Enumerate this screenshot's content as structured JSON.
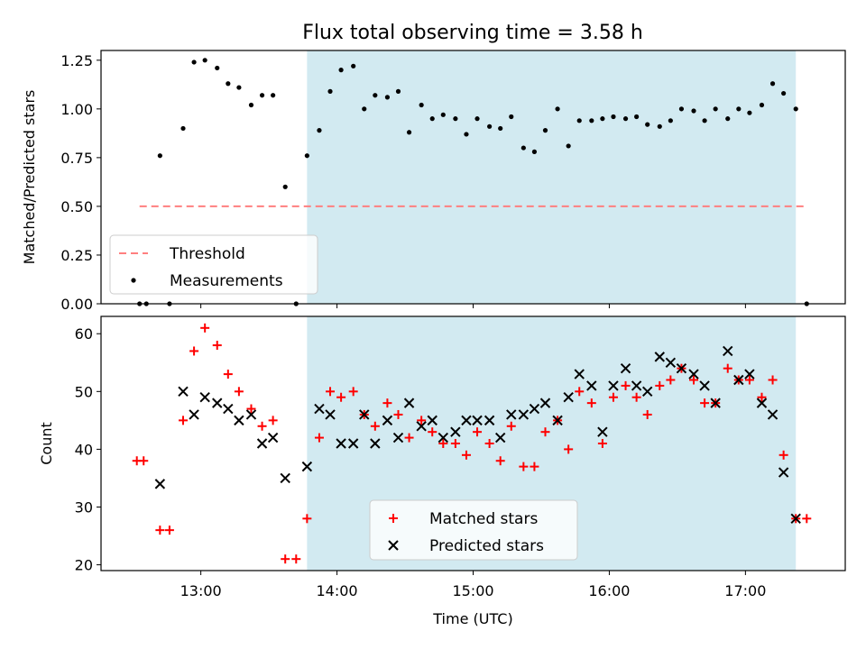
{
  "title": "Flux total observing time = 3.58 h",
  "chart_data": [
    {
      "type": "scatter",
      "ylabel": "Matched/Predicted stars",
      "xlim_hours": [
        12.267,
        17.733
      ],
      "ylim": [
        0.0,
        1.3
      ],
      "yticks": [
        0.0,
        0.25,
        0.5,
        0.75,
        1.0,
        1.25
      ],
      "ytick_labels": [
        "0.00",
        "0.25",
        "0.50",
        "0.75",
        "1.00",
        "1.25"
      ],
      "shaded_span_hours": [
        13.78,
        17.37
      ],
      "shade_color": "#add8e6",
      "threshold": {
        "name": "Threshold",
        "y": 0.5,
        "x_hours": [
          12.55,
          17.45
        ],
        "color": "#ff7f7f"
      },
      "series": [
        {
          "name": "Measurements",
          "color": "#000000",
          "marker": "dot",
          "points": [
            [
              12.55,
              0.0
            ],
            [
              12.6,
              0.0
            ],
            [
              12.7,
              0.76
            ],
            [
              12.77,
              0.0
            ],
            [
              12.87,
              0.9
            ],
            [
              12.95,
              1.24
            ],
            [
              13.03,
              1.25
            ],
            [
              13.12,
              1.21
            ],
            [
              13.2,
              1.13
            ],
            [
              13.28,
              1.11
            ],
            [
              13.37,
              1.02
            ],
            [
              13.45,
              1.07
            ],
            [
              13.53,
              1.07
            ],
            [
              13.62,
              0.6
            ],
            [
              13.7,
              0.0
            ],
            [
              13.78,
              0.76
            ],
            [
              13.87,
              0.89
            ],
            [
              13.95,
              1.09
            ],
            [
              14.03,
              1.2
            ],
            [
              14.12,
              1.22
            ],
            [
              14.2,
              1.0
            ],
            [
              14.28,
              1.07
            ],
            [
              14.37,
              1.06
            ],
            [
              14.45,
              1.09
            ],
            [
              14.53,
              0.88
            ],
            [
              14.62,
              1.02
            ],
            [
              14.7,
              0.95
            ],
            [
              14.78,
              0.97
            ],
            [
              14.87,
              0.95
            ],
            [
              14.95,
              0.87
            ],
            [
              15.03,
              0.95
            ],
            [
              15.12,
              0.91
            ],
            [
              15.2,
              0.9
            ],
            [
              15.28,
              0.96
            ],
            [
              15.37,
              0.8
            ],
            [
              15.45,
              0.78
            ],
            [
              15.53,
              0.89
            ],
            [
              15.62,
              1.0
            ],
            [
              15.7,
              0.81
            ],
            [
              15.78,
              0.94
            ],
            [
              15.87,
              0.94
            ],
            [
              15.95,
              0.95
            ],
            [
              16.03,
              0.96
            ],
            [
              16.12,
              0.95
            ],
            [
              16.2,
              0.96
            ],
            [
              16.28,
              0.92
            ],
            [
              16.37,
              0.91
            ],
            [
              16.45,
              0.94
            ],
            [
              16.53,
              1.0
            ],
            [
              16.62,
              0.99
            ],
            [
              16.7,
              0.94
            ],
            [
              16.78,
              1.0
            ],
            [
              16.87,
              0.95
            ],
            [
              16.95,
              1.0
            ],
            [
              17.03,
              0.98
            ],
            [
              17.12,
              1.02
            ],
            [
              17.2,
              1.13
            ],
            [
              17.28,
              1.08
            ],
            [
              17.37,
              1.0
            ],
            [
              17.45,
              0.0
            ]
          ]
        }
      ],
      "legend": {
        "placement": "lower-left"
      }
    },
    {
      "type": "scatter",
      "xlabel": "Time (UTC)",
      "ylabel": "Count",
      "xlim_hours": [
        12.267,
        17.733
      ],
      "ylim": [
        19,
        63
      ],
      "yticks": [
        20,
        30,
        40,
        50,
        60
      ],
      "ytick_labels": [
        "20",
        "30",
        "40",
        "50",
        "60"
      ],
      "xticks_hours": [
        13,
        14,
        15,
        16,
        17
      ],
      "xtick_labels": [
        "13:00",
        "14:00",
        "15:00",
        "16:00",
        "17:00"
      ],
      "shaded_span_hours": [
        13.78,
        17.37
      ],
      "shade_color": "#add8e6",
      "series": [
        {
          "name": "Matched stars",
          "color": "#ff0000",
          "marker": "plus",
          "points": [
            [
              12.53,
              38
            ],
            [
              12.58,
              38
            ],
            [
              12.7,
              26
            ],
            [
              12.77,
              26
            ],
            [
              12.87,
              45
            ],
            [
              12.95,
              57
            ],
            [
              13.03,
              61
            ],
            [
              13.12,
              58
            ],
            [
              13.2,
              53
            ],
            [
              13.28,
              50
            ],
            [
              13.37,
              47
            ],
            [
              13.45,
              44
            ],
            [
              13.53,
              45
            ],
            [
              13.62,
              21
            ],
            [
              13.7,
              21
            ],
            [
              13.78,
              28
            ],
            [
              13.87,
              42
            ],
            [
              13.95,
              50
            ],
            [
              14.03,
              49
            ],
            [
              14.12,
              50
            ],
            [
              14.2,
              46
            ],
            [
              14.28,
              44
            ],
            [
              14.37,
              48
            ],
            [
              14.45,
              46
            ],
            [
              14.53,
              42
            ],
            [
              14.62,
              45
            ],
            [
              14.7,
              43
            ],
            [
              14.78,
              41
            ],
            [
              14.87,
              41
            ],
            [
              14.95,
              39
            ],
            [
              15.03,
              43
            ],
            [
              15.12,
              41
            ],
            [
              15.2,
              38
            ],
            [
              15.28,
              44
            ],
            [
              15.37,
              37
            ],
            [
              15.45,
              37
            ],
            [
              15.53,
              43
            ],
            [
              15.62,
              45
            ],
            [
              15.7,
              40
            ],
            [
              15.78,
              50
            ],
            [
              15.87,
              48
            ],
            [
              15.95,
              41
            ],
            [
              16.03,
              49
            ],
            [
              16.12,
              51
            ],
            [
              16.2,
              49
            ],
            [
              16.28,
              46
            ],
            [
              16.37,
              51
            ],
            [
              16.45,
              52
            ],
            [
              16.53,
              54
            ],
            [
              16.62,
              52
            ],
            [
              16.7,
              48
            ],
            [
              16.78,
              48
            ],
            [
              16.87,
              54
            ],
            [
              16.95,
              52
            ],
            [
              17.03,
              52
            ],
            [
              17.12,
              49
            ],
            [
              17.2,
              52
            ],
            [
              17.28,
              39
            ],
            [
              17.37,
              28
            ],
            [
              17.45,
              28
            ]
          ]
        },
        {
          "name": "Predicted stars",
          "color": "#000000",
          "marker": "x",
          "points": [
            [
              12.7,
              34
            ],
            [
              12.87,
              50
            ],
            [
              12.95,
              46
            ],
            [
              13.03,
              49
            ],
            [
              13.12,
              48
            ],
            [
              13.2,
              47
            ],
            [
              13.28,
              45
            ],
            [
              13.37,
              46
            ],
            [
              13.45,
              41
            ],
            [
              13.53,
              42
            ],
            [
              13.62,
              35
            ],
            [
              13.78,
              37
            ],
            [
              13.87,
              47
            ],
            [
              13.95,
              46
            ],
            [
              14.03,
              41
            ],
            [
              14.12,
              41
            ],
            [
              14.2,
              46
            ],
            [
              14.28,
              41
            ],
            [
              14.37,
              45
            ],
            [
              14.45,
              42
            ],
            [
              14.53,
              48
            ],
            [
              14.62,
              44
            ],
            [
              14.7,
              45
            ],
            [
              14.78,
              42
            ],
            [
              14.87,
              43
            ],
            [
              14.95,
              45
            ],
            [
              15.03,
              45
            ],
            [
              15.12,
              45
            ],
            [
              15.2,
              42
            ],
            [
              15.28,
              46
            ],
            [
              15.37,
              46
            ],
            [
              15.45,
              47
            ],
            [
              15.53,
              48
            ],
            [
              15.62,
              45
            ],
            [
              15.7,
              49
            ],
            [
              15.78,
              53
            ],
            [
              15.87,
              51
            ],
            [
              15.95,
              43
            ],
            [
              16.03,
              51
            ],
            [
              16.12,
              54
            ],
            [
              16.2,
              51
            ],
            [
              16.28,
              50
            ],
            [
              16.37,
              56
            ],
            [
              16.45,
              55
            ],
            [
              16.53,
              54
            ],
            [
              16.62,
              53
            ],
            [
              16.7,
              51
            ],
            [
              16.78,
              48
            ],
            [
              16.87,
              57
            ],
            [
              16.95,
              52
            ],
            [
              17.03,
              53
            ],
            [
              17.12,
              48
            ],
            [
              17.2,
              46
            ],
            [
              17.28,
              36
            ],
            [
              17.37,
              28
            ]
          ]
        }
      ],
      "legend": {
        "placement": "lower-center"
      }
    }
  ]
}
